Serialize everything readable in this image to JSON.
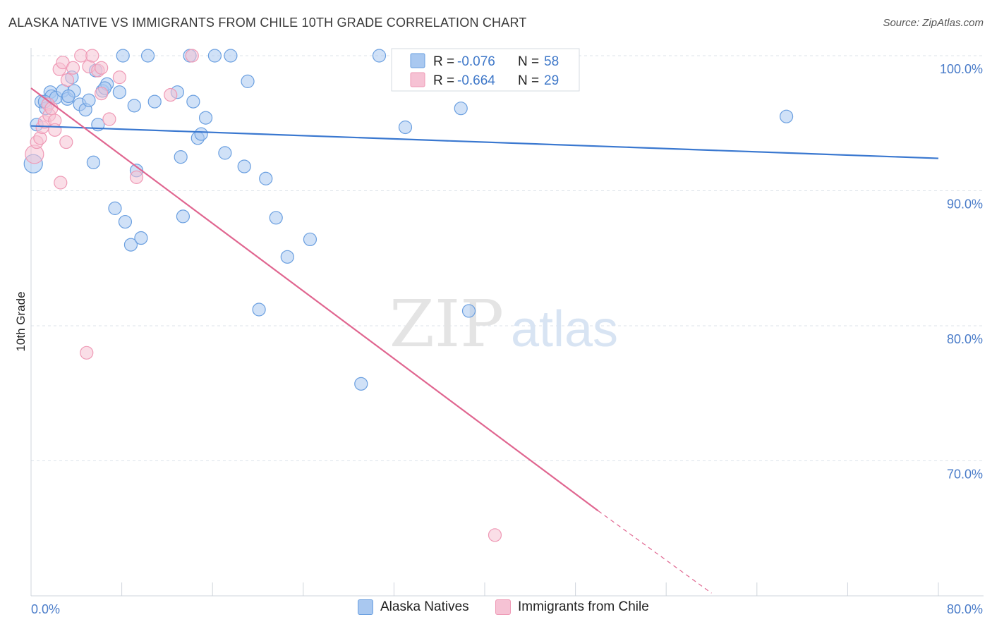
{
  "title": "ALASKA NATIVE VS IMMIGRANTS FROM CHILE 10TH GRADE CORRELATION CHART",
  "source": "Source: ZipAtlas.com",
  "watermark": {
    "zip": "ZIP",
    "atlas": "atlas"
  },
  "colors": {
    "blue": "#6a9fe0",
    "blue_fill": "#a9c8f0",
    "blue_line": "#3a78d0",
    "pink": "#ef9ab6",
    "pink_fill": "#f6c2d4",
    "pink_line": "#e06690",
    "tick_label": "#4a7cc9",
    "grid": "#dde3ea"
  },
  "legend": {
    "r_label": "R =",
    "n_label": "N =",
    "items": [
      {
        "r": "-0.076",
        "n": "58"
      },
      {
        "r": "-0.664",
        "n": "29"
      }
    ]
  },
  "chart_data": {
    "type": "scatter",
    "title": "ALASKA NATIVE VS IMMIGRANTS FROM CHILE 10TH GRADE CORRELATION CHART",
    "xlabel": "",
    "ylabel": "10th Grade",
    "xlim": [
      0,
      80
    ],
    "ylim": [
      61,
      101
    ],
    "x_tick_labels": [
      "0.0%",
      "80.0%"
    ],
    "y_ticks": [
      100,
      90,
      80,
      70
    ],
    "y_tick_labels": [
      "100.0%",
      "90.0%",
      "80.0%",
      "70.0%"
    ],
    "grid": true,
    "legend_position": "top-center",
    "series": [
      {
        "name": "Alaska Natives",
        "color": "#6a9fe0",
        "trend": {
          "x0": 0,
          "y0": 94.8,
          "x1": 80,
          "y1": 92.4
        },
        "points": [
          [
            0.2,
            92.0
          ],
          [
            0.5,
            94.9
          ],
          [
            0.9,
            96.6
          ],
          [
            1.3,
            96.1
          ],
          [
            1.7,
            97.3
          ],
          [
            1.8,
            97.0
          ],
          [
            2.2,
            96.9
          ],
          [
            2.8,
            97.4
          ],
          [
            3.2,
            96.8
          ],
          [
            3.6,
            98.4
          ],
          [
            3.8,
            97.4
          ],
          [
            4.3,
            96.4
          ],
          [
            4.8,
            96.0
          ],
          [
            5.1,
            96.7
          ],
          [
            5.5,
            92.1
          ],
          [
            5.7,
            98.9
          ],
          [
            5.9,
            94.9
          ],
          [
            6.3,
            97.4
          ],
          [
            6.7,
            97.9
          ],
          [
            7.4,
            88.7
          ],
          [
            7.8,
            97.3
          ],
          [
            8.1,
            100.0
          ],
          [
            8.3,
            87.7
          ],
          [
            8.8,
            86.0
          ],
          [
            9.1,
            96.3
          ],
          [
            9.3,
            91.5
          ],
          [
            9.7,
            86.5
          ],
          [
            10.3,
            100.0
          ],
          [
            10.9,
            96.6
          ],
          [
            12.9,
            97.3
          ],
          [
            13.2,
            92.5
          ],
          [
            13.4,
            88.1
          ],
          [
            14.0,
            100.0
          ],
          [
            14.3,
            96.6
          ],
          [
            14.7,
            93.9
          ],
          [
            15.0,
            94.2
          ],
          [
            15.4,
            95.4
          ],
          [
            16.2,
            100.0
          ],
          [
            17.1,
            92.8
          ],
          [
            17.6,
            100.0
          ],
          [
            18.8,
            91.8
          ],
          [
            19.1,
            98.1
          ],
          [
            20.1,
            81.2
          ],
          [
            20.7,
            90.9
          ],
          [
            21.6,
            88.0
          ],
          [
            22.6,
            85.1
          ],
          [
            24.6,
            86.4
          ],
          [
            29.1,
            75.7
          ],
          [
            30.7,
            100.0
          ],
          [
            33.0,
            94.7
          ],
          [
            37.9,
            96.1
          ],
          [
            38.6,
            81.1
          ],
          [
            41.4,
            100.0
          ],
          [
            44.8,
            100.0
          ],
          [
            66.6,
            95.5
          ],
          [
            3.3,
            97.0
          ],
          [
            1.2,
            96.6
          ],
          [
            6.5,
            97.6
          ]
        ]
      },
      {
        "name": "Immigrants from Chile",
        "color": "#ef9ab6",
        "trend": {
          "x0": 0,
          "y0": 97.6,
          "x1": 50,
          "y1": 66.3,
          "dash_x1": 60,
          "dash_y1": 60.2
        },
        "points": [
          [
            0.3,
            92.7
          ],
          [
            0.5,
            93.6
          ],
          [
            0.8,
            93.9
          ],
          [
            1.0,
            94.7
          ],
          [
            1.2,
            95.1
          ],
          [
            1.5,
            96.4
          ],
          [
            1.6,
            95.6
          ],
          [
            1.8,
            96.1
          ],
          [
            2.1,
            95.2
          ],
          [
            2.1,
            94.5
          ],
          [
            2.5,
            99.0
          ],
          [
            2.6,
            90.6
          ],
          [
            2.8,
            99.5
          ],
          [
            3.1,
            93.6
          ],
          [
            3.2,
            98.2
          ],
          [
            3.7,
            99.1
          ],
          [
            4.4,
            100.0
          ],
          [
            4.9,
            78.0
          ],
          [
            5.1,
            99.2
          ],
          [
            5.4,
            100.0
          ],
          [
            5.9,
            98.9
          ],
          [
            6.2,
            99.1
          ],
          [
            6.2,
            97.2
          ],
          [
            6.9,
            95.3
          ],
          [
            7.8,
            98.4
          ],
          [
            9.3,
            91.0
          ],
          [
            12.3,
            97.1
          ],
          [
            14.2,
            100.0
          ],
          [
            40.9,
            64.5
          ]
        ]
      }
    ]
  }
}
